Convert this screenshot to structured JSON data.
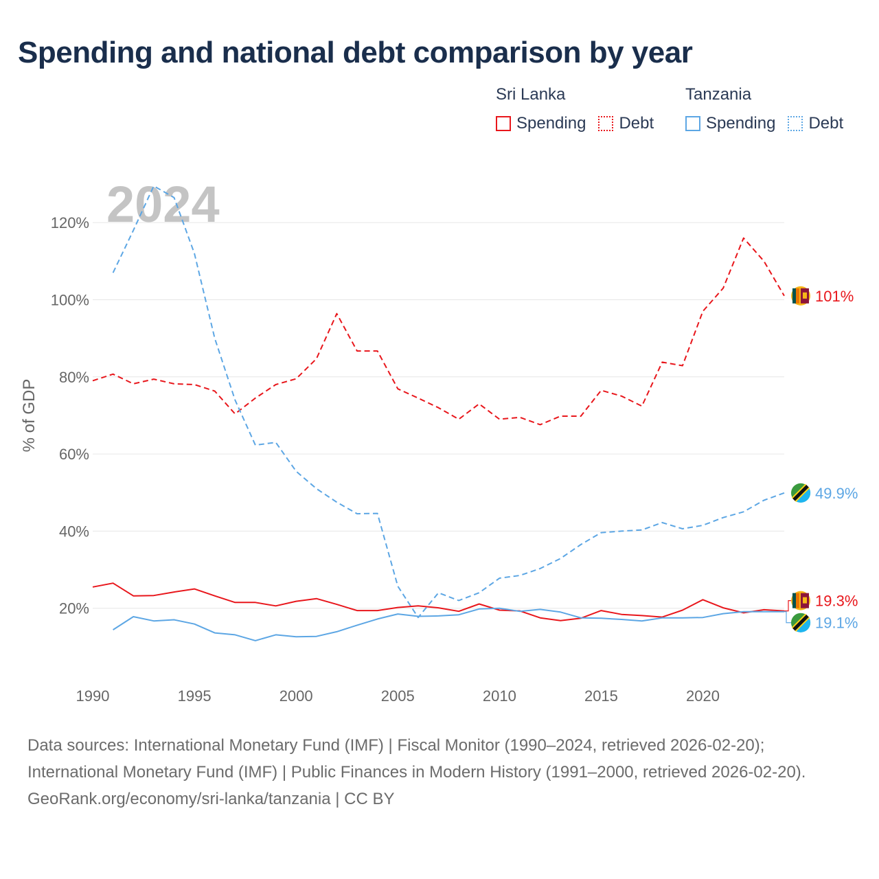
{
  "title": "Spending and national debt comparison by year",
  "legend": {
    "groups": [
      {
        "country": "Sri Lanka",
        "spending_label": "Spending",
        "debt_label": "Debt",
        "color": "#e8161b"
      },
      {
        "country": "Tanzania",
        "spending_label": "Spending",
        "debt_label": "Debt",
        "color": "#5ca6e4"
      }
    ]
  },
  "year_label": "2024",
  "footer": {
    "sources": "Data sources: International Monetary Fund (IMF) | Fiscal Monitor (1990–2024, retrieved 2026-02-20); International Monetary Fund (IMF) | Public Finances in Modern History (1991–2000, retrieved 2026-02-20).",
    "credit": "GeoRank.org/economy/sri-lanka/tanzania | CC BY"
  },
  "chart_data": {
    "type": "line",
    "title": "Spending and national debt comparison by year",
    "xlabel": "",
    "ylabel": "% of GDP",
    "xlim": [
      1990,
      2024
    ],
    "ylim": [
      0,
      130
    ],
    "x_ticks": [
      1990,
      1995,
      2000,
      2005,
      2010,
      2015,
      2020
    ],
    "x_tick_labels": [
      "1990",
      "1995",
      "2000",
      "2005",
      "2010",
      "2015",
      "2020"
    ],
    "y_ticks": [
      20,
      40,
      60,
      80,
      100,
      120
    ],
    "y_tick_labels": [
      "20%",
      "40%",
      "60%",
      "80%",
      "100%",
      "120%"
    ],
    "grid": true,
    "series": [
      {
        "name": "Sri Lanka Debt",
        "country": "Sri Lanka",
        "metric": "Debt",
        "color": "#e8161b",
        "dash": "dashed",
        "x": [
          1990,
          1991,
          1992,
          1993,
          1994,
          1995,
          1996,
          1997,
          1998,
          1999,
          2000,
          2001,
          2002,
          2003,
          2004,
          2005,
          2006,
          2007,
          2008,
          2009,
          2010,
          2011,
          2012,
          2013,
          2014,
          2015,
          2016,
          2017,
          2018,
          2019,
          2020,
          2021,
          2022,
          2023,
          2024
        ],
        "values": [
          79.0,
          80.7,
          78.2,
          79.4,
          78.2,
          78.0,
          76.3,
          70.4,
          74.5,
          78.0,
          79.5,
          84.7,
          96.4,
          86.7,
          86.7,
          76.9,
          74.5,
          72.0,
          69.0,
          73.0,
          69.0,
          69.5,
          67.6,
          69.8,
          69.8,
          76.5,
          75.0,
          72.4,
          83.8,
          82.9,
          97.0,
          103.0,
          116.0,
          110.0,
          101.0
        ],
        "end_label": "101%"
      },
      {
        "name": "Tanzania Debt",
        "country": "Tanzania",
        "metric": "Debt",
        "color": "#5ca6e4",
        "dash": "dashed",
        "x": [
          1991,
          1992,
          1993,
          1994,
          1995,
          1996,
          1997,
          1998,
          1999,
          2000,
          2001,
          2002,
          2003,
          2004,
          2005,
          2006,
          2007,
          2008,
          2009,
          2010,
          2011,
          2012,
          2013,
          2014,
          2015,
          2016,
          2017,
          2018,
          2019,
          2020,
          2021,
          2022,
          2023,
          2024
        ],
        "values": [
          107.0,
          118.0,
          129.5,
          126.5,
          112.0,
          90.0,
          74.0,
          62.3,
          63.0,
          55.5,
          51.0,
          47.5,
          44.5,
          44.6,
          25.7,
          17.6,
          24.0,
          22.0,
          24.0,
          27.8,
          28.5,
          30.3,
          32.9,
          36.5,
          39.6,
          40.0,
          40.3,
          42.2,
          40.6,
          41.5,
          43.5,
          45.0,
          48.0,
          49.9
        ],
        "end_label": "49.9%"
      },
      {
        "name": "Sri Lanka Spending",
        "country": "Sri Lanka",
        "metric": "Spending",
        "color": "#e8161b",
        "dash": "solid",
        "x": [
          1990,
          1991,
          1992,
          1993,
          1994,
          1995,
          1996,
          1997,
          1998,
          1999,
          2000,
          2001,
          2002,
          2003,
          2004,
          2005,
          2006,
          2007,
          2008,
          2009,
          2010,
          2011,
          2012,
          2013,
          2014,
          2015,
          2016,
          2017,
          2018,
          2019,
          2020,
          2021,
          2022,
          2023,
          2024
        ],
        "values": [
          25.5,
          26.5,
          23.2,
          23.3,
          24.2,
          25.0,
          23.2,
          21.5,
          21.5,
          20.6,
          21.8,
          22.5,
          21.0,
          19.4,
          19.4,
          20.2,
          20.6,
          20.1,
          19.2,
          21.1,
          19.5,
          19.3,
          17.5,
          16.8,
          17.4,
          19.4,
          18.4,
          18.1,
          17.7,
          19.5,
          22.2,
          20.1,
          18.8,
          19.6,
          19.3
        ],
        "end_label": "19.3%"
      },
      {
        "name": "Tanzania Spending",
        "country": "Tanzania",
        "metric": "Spending",
        "color": "#5ca6e4",
        "dash": "solid",
        "x": [
          1991,
          1992,
          1993,
          1994,
          1995,
          1996,
          1997,
          1998,
          1999,
          2000,
          2001,
          2002,
          2003,
          2004,
          2005,
          2006,
          2007,
          2008,
          2009,
          2010,
          2011,
          2012,
          2013,
          2014,
          2015,
          2016,
          2017,
          2018,
          2019,
          2020,
          2021,
          2022,
          2023,
          2024
        ],
        "values": [
          14.4,
          17.8,
          16.7,
          17.0,
          15.9,
          13.6,
          13.1,
          11.6,
          13.1,
          12.6,
          12.7,
          13.9,
          15.6,
          17.2,
          18.5,
          17.9,
          18.0,
          18.3,
          19.8,
          20.0,
          19.2,
          19.7,
          19.0,
          17.5,
          17.4,
          17.1,
          16.7,
          17.5,
          17.5,
          17.6,
          18.6,
          19.1,
          19.1,
          19.1
        ],
        "end_label": "19.1%"
      }
    ]
  }
}
